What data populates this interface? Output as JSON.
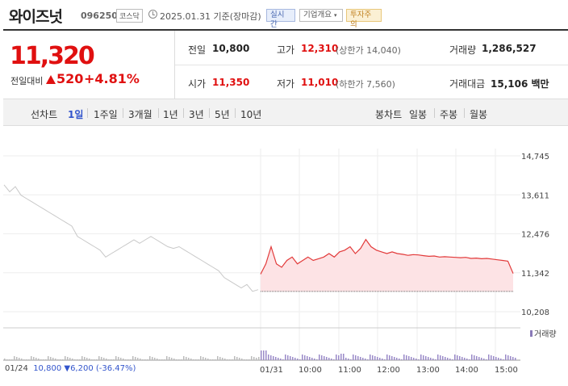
{
  "header": {
    "stock_name": "와이즈넛",
    "stock_code": "096250",
    "market": "코스닥",
    "date": "2025.01.31",
    "basis": "기준(장마감)",
    "realtime_btn": "실시간",
    "company_btn": "기업개요",
    "warning_btn": "투자주의"
  },
  "price": {
    "current": "11,320",
    "change_label": "전일대비",
    "change_value": "520",
    "change_pct": "+4.81%"
  },
  "stats": {
    "prev_label": "전일",
    "prev_value": "10,800",
    "high_label": "고가",
    "high_value": "12,310",
    "upper_limit": "(상한가 14,040)",
    "volume_label": "거래량",
    "volume_value": "1,286,527",
    "open_label": "시가",
    "open_value": "11,350",
    "low_label": "저가",
    "low_value": "11,010",
    "lower_limit": "(하한가 7,560)",
    "amount_label": "거래대금",
    "amount_value": "15,106 백만"
  },
  "line_chart_bar": {
    "title": "선차트",
    "periods": [
      "1일",
      "1주일",
      "3개월",
      "1년",
      "3년",
      "5년",
      "10년"
    ],
    "selected": "1일",
    "candle_title": "봉차트",
    "candle_periods": [
      "일봉",
      "주봉",
      "월봉"
    ]
  },
  "chart_data": {
    "type": "line",
    "y_ticks": [
      "14,745",
      "13,611",
      "12,476",
      "11,342",
      "10,208"
    ],
    "ylim": [
      10208,
      14745
    ],
    "x_labels": [
      "01/31",
      "10:00",
      "11:00",
      "12:00",
      "13:00",
      "14:00",
      "15:00"
    ],
    "prev_close": 10800,
    "volume_label": "거래량",
    "prev_period_series_points": [
      13900,
      13700,
      13850,
      13600,
      13500,
      13400,
      13300,
      13200,
      13100,
      13000,
      12900,
      12800,
      12700,
      12400,
      12300,
      12200,
      12100,
      12000,
      11800,
      11900,
      12000,
      12100,
      12200,
      12300,
      12200,
      12300,
      12400,
      12300,
      12200,
      12100,
      12050,
      12100,
      12000,
      11900,
      11800,
      11700,
      11600,
      11500,
      11400,
      11200,
      11100,
      11000,
      10900,
      11000,
      10800,
      10850
    ],
    "today_series_points": [
      11300,
      11600,
      12100,
      11600,
      11500,
      11700,
      11800,
      11600,
      11700,
      11800,
      11700,
      11750,
      11800,
      11900,
      11800,
      11950,
      12000,
      12100,
      11900,
      12050,
      12310,
      12100,
      12000,
      11950,
      11900,
      11950,
      11900,
      11880,
      11850,
      11870,
      11860,
      11840,
      11820,
      11830,
      11800,
      11810,
      11800,
      11790,
      11780,
      11790,
      11760,
      11770,
      11750,
      11760,
      11740,
      11720,
      11700,
      11680,
      11320
    ]
  },
  "footer": {
    "start_date": "01/24",
    "start_price": "10,800",
    "drop": "▼6,200",
    "drop_pct": "(-36.47%)"
  }
}
